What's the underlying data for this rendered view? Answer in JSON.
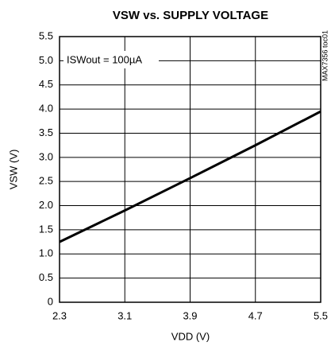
{
  "chart_data": {
    "type": "line",
    "title": "VSW vs. SUPPLY VOLTAGE",
    "x_label": "VDD (V)",
    "y_label": "VSW (V)",
    "annotation": "ISWout = 100µA",
    "side_note": "MAX7356 toc01",
    "x": [
      2.3,
      3.1,
      3.9,
      4.7,
      5.5
    ],
    "series": [
      {
        "name": "VSW",
        "color": "#000000",
        "values": [
          1.25,
          1.9,
          2.57,
          3.25,
          3.95
        ]
      }
    ],
    "xlim": [
      2.3,
      5.5
    ],
    "xticks": [
      2.3,
      3.1,
      3.9,
      4.7,
      5.5
    ],
    "ylim": [
      0,
      5.5
    ],
    "yticks": [
      0,
      0.5,
      {
        "value": 1,
        "label": "1.0"
      },
      1.5,
      {
        "value": 2,
        "label": "2.0"
      },
      2.5,
      {
        "value": 3,
        "label": "3.0"
      },
      3.5,
      {
        "value": 4,
        "label": "4.0"
      },
      4.5,
      {
        "value": 5,
        "label": "5.0"
      },
      5.5
    ],
    "grid": true
  }
}
